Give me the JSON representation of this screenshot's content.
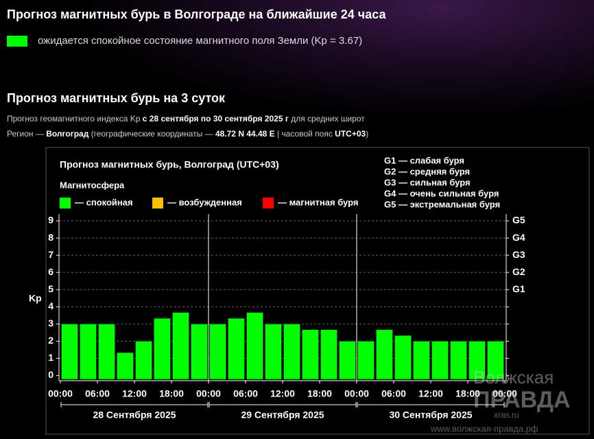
{
  "header": {
    "title": "Прогноз магнитных бурь в Волгограде на ближайшие 24 часа",
    "status_color": "#00ff00",
    "status": "ожидается спокойное состояние магнитного поля Земли (Kp = 3.67)"
  },
  "section": {
    "title": "Прогноз магнитных бурь на 3 суток",
    "lines": [
      [
        {
          "text": "Прогноз геомагнитного индекса Kp ",
          "bold": false
        },
        {
          "text": "с 28 сентября по 30 сентября 2025 г",
          "bold": true
        },
        {
          "text": " для средних широт",
          "bold": false
        }
      ],
      [
        {
          "text": "Регион — ",
          "bold": false
        },
        {
          "text": "Волгоград",
          "bold": true
        },
        {
          "text": " (географические координаты — ",
          "bold": false
        },
        {
          "text": "48.72 N 44.48 E",
          "bold": true
        },
        {
          "text": " | часовой пояс ",
          "bold": false
        },
        {
          "text": "UTC+03",
          "bold": true
        },
        {
          "text": ")",
          "bold": false
        }
      ]
    ]
  },
  "chart_data": {
    "type": "bar",
    "title": "Прогноз магнитных бурь, Волгоград (UTC+03)",
    "legend_title": "Магнитосфера",
    "legend": [
      {
        "label": "— спокойная",
        "color": "#00ff00"
      },
      {
        "label": "— возбужденная",
        "color": "#ffc000"
      },
      {
        "label": "— магнитная буря",
        "color": "#ff0000"
      }
    ],
    "scale_legend": [
      "G1 — слабая буря",
      "G2 — средняя буря",
      "G3 — сильная буря",
      "G4 — очень сильная буря",
      "G5 — экстремальная буря"
    ],
    "ylabel": "Kp",
    "color": "#00ff00",
    "values": [
      3,
      3,
      3,
      1.33,
      2,
      3.33,
      3.67,
      3,
      3,
      3.33,
      3.67,
      3,
      3,
      2.67,
      2.67,
      2,
      2,
      2.67,
      2.33,
      2,
      2,
      2,
      2,
      2
    ],
    "xtick_labels": [
      "00:00",
      "06:00",
      "12:00",
      "18:00",
      "00:00",
      "06:00",
      "12:00",
      "18:00",
      "00:00",
      "06:00",
      "12:00",
      "18:00",
      "00:00"
    ],
    "days": [
      "28 Сентября 2025",
      "29 Сентября 2025",
      "30 Сентября 2025"
    ],
    "ylim": [
      -0.3,
      9.4
    ],
    "yticks": [
      0,
      1,
      2,
      3,
      4,
      5,
      6,
      7,
      8,
      9
    ],
    "y2ticks": [
      {
        "value": 5,
        "label": "G1"
      },
      {
        "value": 6,
        "label": "G2"
      },
      {
        "value": 7,
        "label": "G3"
      },
      {
        "value": 8,
        "label": "G4"
      },
      {
        "value": 9,
        "label": "G5"
      }
    ],
    "grid": true
  },
  "watermark": [
    "Волжская",
    "ПРАВДА",
    "xras.ru",
    "www.волжская-правда.рф"
  ]
}
